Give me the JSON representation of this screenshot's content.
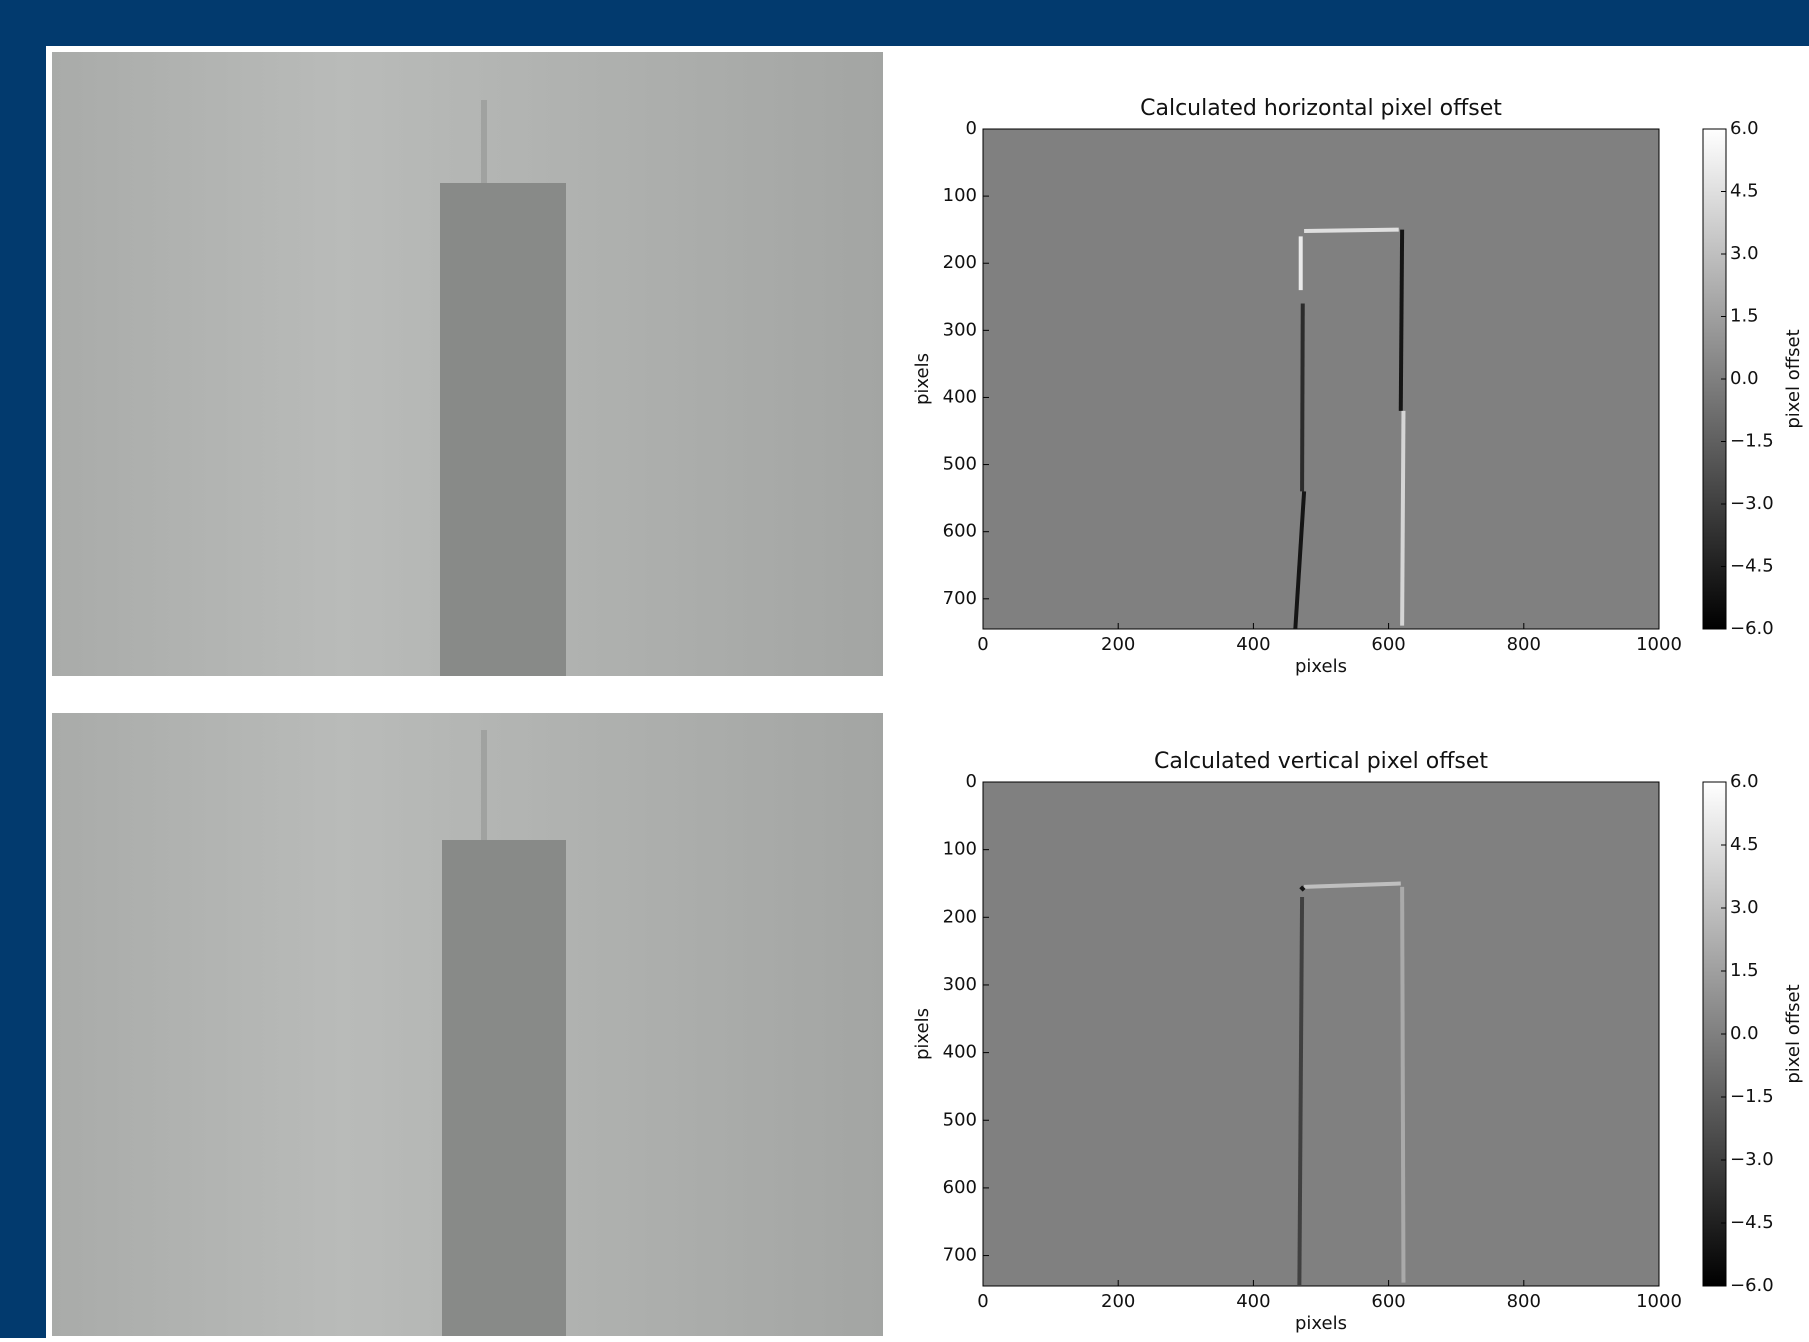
{
  "chart_data": [
    {
      "type": "heatmap",
      "title": "Calculated horizontal pixel offset",
      "xlabel": "pixels",
      "ylabel": "pixels",
      "xlim": [
        0,
        1000
      ],
      "ylim": [
        745,
        0
      ],
      "xticks": [
        0,
        200,
        400,
        600,
        800,
        1000
      ],
      "yticks": [
        0,
        100,
        200,
        300,
        400,
        500,
        600,
        700
      ],
      "colormap": "gray",
      "clim": [
        -6,
        6
      ],
      "background": 0,
      "colorbar_label": "pixel offset",
      "colorbar_ticks": [
        {
          "value": 6,
          "label": "6.0"
        },
        4.5,
        {
          "value": 3,
          "label": "3.0"
        },
        1.5,
        {
          "value": 0,
          "label": "0.0"
        },
        {
          "value": -1.5,
          "label": "−1.5"
        },
        {
          "value": -3,
          "label": "−3.0"
        },
        {
          "value": -4.5,
          "label": "−4.5"
        },
        {
          "value": -6,
          "label": "−6.0"
        }
      ],
      "features": [
        {
          "x": [
            475,
            615
          ],
          "y": [
            152,
            150
          ],
          "value": 4.5
        },
        {
          "x": [
            470,
            470
          ],
          "y": [
            160,
            240
          ],
          "value": 5
        },
        {
          "x": [
            473,
            472
          ],
          "y": [
            260,
            540
          ],
          "value": -4
        },
        {
          "x": [
            475,
            462
          ],
          "y": [
            540,
            745
          ],
          "value": -5
        },
        {
          "x": [
            620,
            618
          ],
          "y": [
            150,
            420
          ],
          "value": -5
        },
        {
          "x": [
            622,
            620
          ],
          "y": [
            420,
            740
          ],
          "value": 4
        }
      ]
    },
    {
      "type": "heatmap",
      "title": "Calculated vertical pixel offset",
      "xlabel": "pixels",
      "ylabel": "pixels",
      "xlim": [
        0,
        1000
      ],
      "ylim": [
        745,
        0
      ],
      "xticks": [
        0,
        200,
        400,
        600,
        800,
        1000
      ],
      "yticks": [
        0,
        100,
        200,
        300,
        400,
        500,
        600,
        700
      ],
      "colormap": "gray",
      "clim": [
        -6,
        6
      ],
      "background": 0,
      "colorbar_label": "pixel offset",
      "colorbar_ticks": [
        {
          "value": 6,
          "label": "6.0"
        },
        4.5,
        {
          "value": 3,
          "label": "3.0"
        },
        1.5,
        {
          "value": 0,
          "label": "0.0"
        },
        {
          "value": -1.5,
          "label": "−1.5"
        },
        {
          "value": -3,
          "label": "−3.0"
        },
        {
          "value": -4.5,
          "label": "−4.5"
        },
        {
          "value": -6,
          "label": "−6.0"
        }
      ],
      "features": [
        {
          "x": [
            475,
            618
          ],
          "y": [
            155,
            150
          ],
          "value": 3
        },
        {
          "x": [
            470,
            475
          ],
          "y": [
            155,
            160
          ],
          "value": -5
        },
        {
          "x": [
            472,
            468
          ],
          "y": [
            170,
            745
          ],
          "value": -3
        },
        {
          "x": [
            620,
            622
          ],
          "y": [
            155,
            740
          ],
          "value": 2
        }
      ]
    }
  ]
}
